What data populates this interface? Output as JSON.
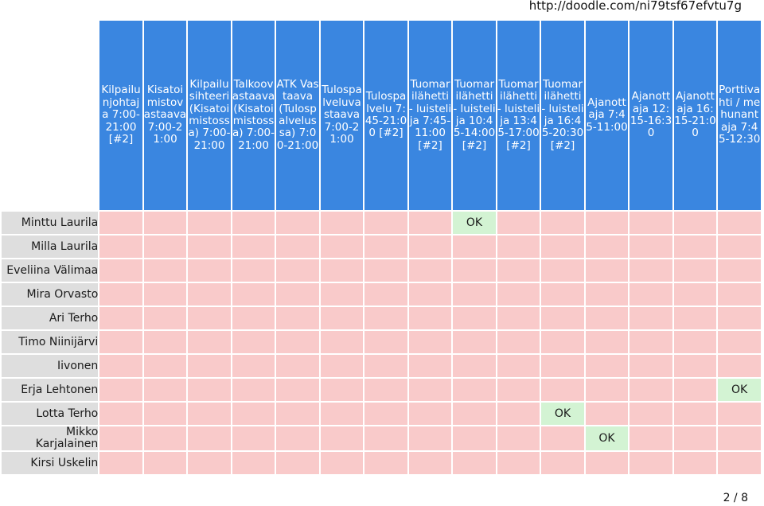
{
  "url": "http://doodle.com/ni79tsf67efvtu7g",
  "pager": "2 / 8",
  "columns": [
    "Kilpailunjohtaja 7:00-21:00 [#2]",
    "Kisatoimistovastaava 7:00-21:00",
    "Kilpailusihteeri (Kisatoimistossa) 7:00-21:00",
    "Talkoovastaava (Kisatoimistossa) 7:00-21:00",
    "ATK Vastaava (Tulospalvelussa) 7:00-21:00",
    "Tulospalveluvastaava 7:00-21:00",
    "Tulospalvelu 7:45-21:00 [#2]",
    "Tuomarilähetti - luistelija 7:45-11:00 [#2]",
    "Tuomarilähetti - luistelija 10:45-14:00 [#2]",
    "Tuomarilähetti - luistelija 13:45-17:00 [#2]",
    "Tuomarilähetti - luistelija 16:45-20:30 [#2]",
    "Ajanottaja 7:45-11:00",
    "Ajanottaja 12:15-16:30",
    "Ajanottaja 16:15-21:00",
    "Porttivahti / mehunantaja 7:45-12:30"
  ],
  "ok_label": "OK",
  "rows": [
    {
      "name": "Minttu Laurila",
      "cells": [
        "",
        "",
        "",
        "",
        "",
        "",
        "",
        "",
        "OK",
        "",
        "",
        "",
        "",
        "",
        ""
      ]
    },
    {
      "name": "Milla Laurila",
      "cells": [
        "",
        "",
        "",
        "",
        "",
        "",
        "",
        "",
        "",
        "",
        "",
        "",
        "",
        "",
        ""
      ]
    },
    {
      "name": "Eveliina Välimaa",
      "cells": [
        "",
        "",
        "",
        "",
        "",
        "",
        "",
        "",
        "",
        "",
        "",
        "",
        "",
        "",
        ""
      ]
    },
    {
      "name": "Mira Orvasto",
      "cells": [
        "",
        "",
        "",
        "",
        "",
        "",
        "",
        "",
        "",
        "",
        "",
        "",
        "",
        "",
        ""
      ]
    },
    {
      "name": "Ari Terho",
      "cells": [
        "",
        "",
        "",
        "",
        "",
        "",
        "",
        "",
        "",
        "",
        "",
        "",
        "",
        "",
        ""
      ]
    },
    {
      "name": "Timo Niinijärvi",
      "cells": [
        "",
        "",
        "",
        "",
        "",
        "",
        "",
        "",
        "",
        "",
        "",
        "",
        "",
        "",
        ""
      ]
    },
    {
      "name": "Iivonen",
      "cells": [
        "",
        "",
        "",
        "",
        "",
        "",
        "",
        "",
        "",
        "",
        "",
        "",
        "",
        "",
        ""
      ]
    },
    {
      "name": "Erja Lehtonen",
      "cells": [
        "",
        "",
        "",
        "",
        "",
        "",
        "",
        "",
        "",
        "",
        "",
        "",
        "",
        "",
        "OK"
      ]
    },
    {
      "name": "Lotta Terho",
      "cells": [
        "",
        "",
        "",
        "",
        "",
        "",
        "",
        "",
        "",
        "",
        "OK",
        "",
        "",
        "",
        ""
      ]
    },
    {
      "name": "Mikko Karjalainen",
      "cells": [
        "",
        "",
        "",
        "",
        "",
        "",
        "",
        "",
        "",
        "",
        "",
        "OK",
        "",
        "",
        ""
      ]
    },
    {
      "name": "Kirsi Uskelin",
      "cells": [
        "",
        "",
        "",
        "",
        "",
        "",
        "",
        "",
        "",
        "",
        "",
        "",
        "",
        "",
        ""
      ]
    }
  ],
  "colors": {
    "header": "#3a86e0",
    "no": "#f9caca",
    "yes": "#d3f3d3",
    "name_bg": "#dedede"
  }
}
